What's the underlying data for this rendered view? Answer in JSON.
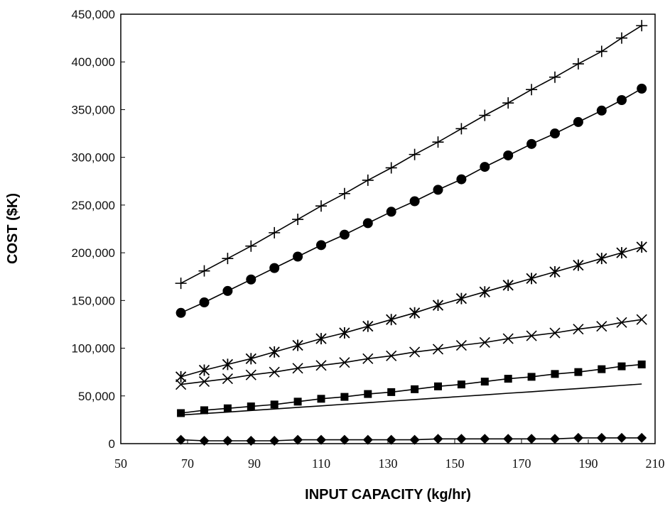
{
  "chart_data": {
    "type": "line",
    "title": "",
    "xlabel": "INPUT CAPACITY (kg/hr)",
    "ylabel": "COST ($K)",
    "xlim": [
      50,
      210
    ],
    "ylim": [
      0,
      450000
    ],
    "xticks": [
      "50",
      "70",
      "90",
      "110",
      "130",
      "150",
      "170",
      "190",
      "210"
    ],
    "yticks": [
      "0",
      "50,000",
      "100,000",
      "150,000",
      "200,000",
      "250,000",
      "300,000",
      "350,000",
      "400,000",
      "450,000"
    ],
    "grid": false,
    "legend": "none",
    "x": [
      68,
      75,
      82,
      89,
      96,
      103,
      110,
      117,
      124,
      131,
      138,
      145,
      152,
      159,
      166,
      173,
      180,
      187,
      194,
      200,
      206
    ],
    "series": [
      {
        "marker": "plus",
        "values": [
          168000,
          181000,
          194000,
          207000,
          221000,
          235000,
          249000,
          262000,
          276000,
          289000,
          303000,
          316000,
          330000,
          344000,
          357000,
          371000,
          384000,
          398000,
          411000,
          425000,
          438000
        ]
      },
      {
        "marker": "circle",
        "values": [
          137000,
          148000,
          160000,
          172000,
          184000,
          196000,
          208000,
          219000,
          231000,
          243000,
          254000,
          266000,
          277000,
          290000,
          302000,
          314000,
          325000,
          337000,
          349000,
          360000,
          372000
        ]
      },
      {
        "marker": "asterisk",
        "values": [
          70000,
          77000,
          83000,
          89000,
          96000,
          103000,
          110000,
          116000,
          123000,
          130000,
          137000,
          145000,
          152000,
          159000,
          166000,
          173000,
          180000,
          187000,
          194000,
          200000,
          206000
        ]
      },
      {
        "marker": "x",
        "values": [
          62000,
          65000,
          68000,
          72000,
          75000,
          79000,
          82000,
          85000,
          89000,
          92000,
          96000,
          99000,
          103000,
          106000,
          110000,
          113000,
          116000,
          120000,
          123000,
          127000,
          130000
        ]
      },
      {
        "marker": "square",
        "values": [
          32000,
          35000,
          37000,
          39000,
          41000,
          44000,
          47000,
          49000,
          52000,
          54000,
          57000,
          60000,
          62000,
          65000,
          68000,
          70000,
          73000,
          75000,
          78000,
          81000,
          83000
        ]
      },
      {
        "marker": "none",
        "values": [
          30000,
          31500,
          33000,
          34700,
          36300,
          38000,
          39600,
          41300,
          42900,
          44600,
          46200,
          47800,
          49500,
          51100,
          52800,
          54400,
          56100,
          57700,
          59400,
          61000,
          62500
        ]
      },
      {
        "marker": "diamond",
        "values": [
          4000,
          3000,
          3000,
          3000,
          3000,
          4000,
          4000,
          4000,
          4000,
          4000,
          4000,
          5000,
          5000,
          5000,
          5000,
          5000,
          5000,
          6000,
          6000,
          6000,
          6000
        ]
      }
    ],
    "colors": {
      "ink": "#000000",
      "background": "#ffffff"
    }
  }
}
